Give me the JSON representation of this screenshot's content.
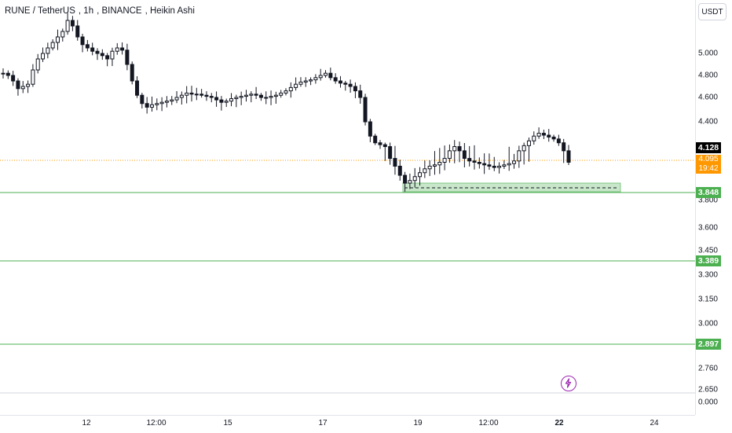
{
  "header": {
    "symbol": "RUNE / TetherUS",
    "interval": "1h",
    "exchange": "BINANCE",
    "chart_style": "Heikin Ashi"
  },
  "price_axis": {
    "currency": "USDT",
    "ticks": [
      "5.000",
      "4.800",
      "4.600",
      "4.400",
      "3.800",
      "3.600",
      "3.450",
      "3.300",
      "3.150",
      "3.000",
      "2.760",
      "2.650",
      "0.000"
    ]
  },
  "price_labels": {
    "last_high": "4.128",
    "current": "4.095",
    "countdown": "19:42",
    "level_1": "3.848",
    "level_2": "3.389",
    "level_3": "2.897"
  },
  "time_axis": {
    "ticks": [
      "12",
      "12:00",
      "15",
      "17",
      "19",
      "12:00",
      "22",
      "24"
    ],
    "bold_tick": "22"
  },
  "colors": {
    "up": "#131722",
    "down": "#131722",
    "level_line": "#4caf50",
    "zone_fill": "#c8e6c9",
    "current_price": "#ff9800",
    "icon": "#9c27b0"
  },
  "icons": {
    "bolt": "lightning-icon"
  },
  "chart_data": {
    "type": "line",
    "title": "RUNE / TetherUS, 1h, BINANCE, Heikin Ashi",
    "xlabel": "",
    "ylabel": "",
    "x": [
      "12",
      "12:00",
      "15",
      "17",
      "19",
      "12:00",
      "22"
    ],
    "series": [
      {
        "values": [
          4.95,
          4.62,
          4.63,
          4.78,
          3.92,
          4.05,
          4.1
        ]
      }
    ],
    "ohlc_path_approx": [
      4.82,
      4.8,
      4.75,
      4.68,
      4.7,
      4.72,
      4.85,
      4.95,
      5.0,
      5.05,
      5.1,
      5.15,
      5.2,
      5.3,
      5.25,
      5.15,
      5.08,
      5.05,
      5.02,
      5.0,
      4.98,
      4.95,
      5.02,
      5.05,
      5.03,
      4.9,
      4.75,
      4.62,
      4.55,
      4.52,
      4.54,
      4.55,
      4.56,
      4.57,
      4.58,
      4.6,
      4.62,
      4.64,
      4.63,
      4.63,
      4.62,
      4.61,
      4.6,
      4.58,
      4.56,
      4.57,
      4.59,
      4.6,
      4.61,
      4.62,
      4.63,
      4.62,
      4.6,
      4.6,
      4.61,
      4.62,
      4.64,
      4.66,
      4.69,
      4.72,
      4.74,
      4.75,
      4.76,
      4.78,
      4.8,
      4.82,
      4.78,
      4.75,
      4.73,
      4.72,
      4.7,
      4.66,
      4.6,
      4.4,
      4.25,
      4.18,
      4.16,
      4.14,
      4.1,
      4.05,
      3.98,
      3.92,
      3.94,
      3.97,
      4.0,
      4.03,
      4.05,
      4.06,
      4.08,
      4.1,
      4.12,
      4.14,
      4.12,
      4.1,
      4.09,
      4.08,
      4.07,
      4.06,
      4.05,
      4.04,
      4.05,
      4.06,
      4.07,
      4.09,
      4.12,
      4.15,
      4.2,
      4.25,
      4.28,
      4.26,
      4.24,
      4.22,
      4.18,
      4.12,
      4.08
    ],
    "levels": [
      3.848,
      3.389,
      2.897
    ],
    "current_price": 4.095,
    "support_zone": [
      3.82,
      3.86
    ],
    "ylim": [
      2.6,
      5.2
    ],
    "grid": false
  }
}
